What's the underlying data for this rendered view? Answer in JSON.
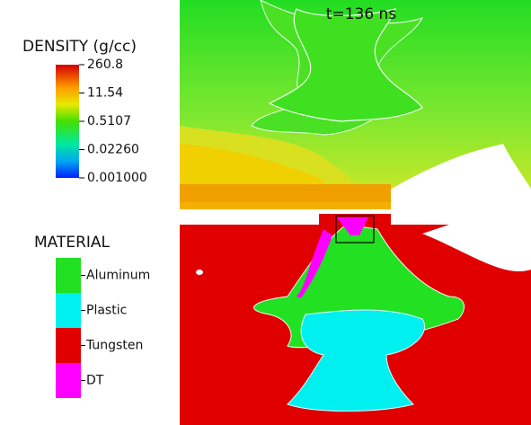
{
  "time_label": "t=136 ns",
  "density_legend": {
    "title": "DENSITY (g/cc)",
    "ticks": [
      "260.8",
      "11.54",
      "0.5107",
      "0.02260",
      "0.001000"
    ]
  },
  "material_legend": {
    "title": "MATERIAL",
    "items": [
      "Aluminum",
      "Plastic",
      "Tungsten",
      "DT"
    ]
  }
}
